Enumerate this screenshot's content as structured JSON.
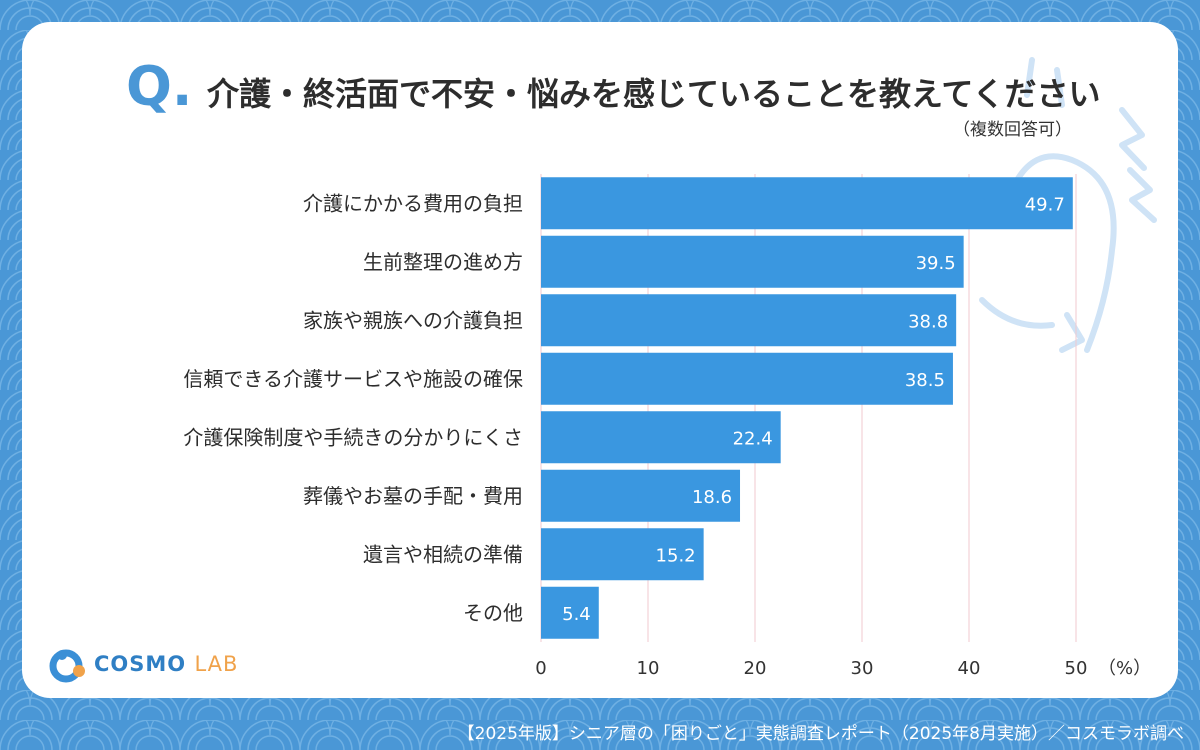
{
  "question_mark": "Q.",
  "title": "介護・終活面で不安・悩みを感じていることを教えてください",
  "note": "（複数回答可）",
  "logo": {
    "main": "COSMO",
    "sub": "LAB"
  },
  "footer": "【2025年版】シニア層の「困りごと」実態調査レポート（2025年8月実施）／コスモラボ調べ",
  "colors": {
    "background": "#4a97d6",
    "bar": "#3a97e0",
    "accent": "#4a97d6"
  },
  "chart_data": {
    "type": "bar",
    "orientation": "horizontal",
    "categories": [
      "介護にかかる費用の負担",
      "生前整理の進め方",
      "家族や親族への介護負担",
      "信頼できる介護サービスや施設の確保",
      "介護保険制度や手続きの分かりにくさ",
      "葬儀やお墓の手配・費用",
      "遺言や相続の準備",
      "その他"
    ],
    "values": [
      49.7,
      39.5,
      38.8,
      38.5,
      22.4,
      18.6,
      15.2,
      5.4
    ],
    "value_labels": [
      "49.7",
      "39.5",
      "38.8",
      "38.5",
      "22.4",
      "18.6",
      "15.2",
      "5.4"
    ],
    "xlim": [
      0,
      50
    ],
    "xticks": [
      "0",
      "10",
      "20",
      "30",
      "40",
      "50"
    ],
    "unit": "（%）",
    "grid": true
  }
}
